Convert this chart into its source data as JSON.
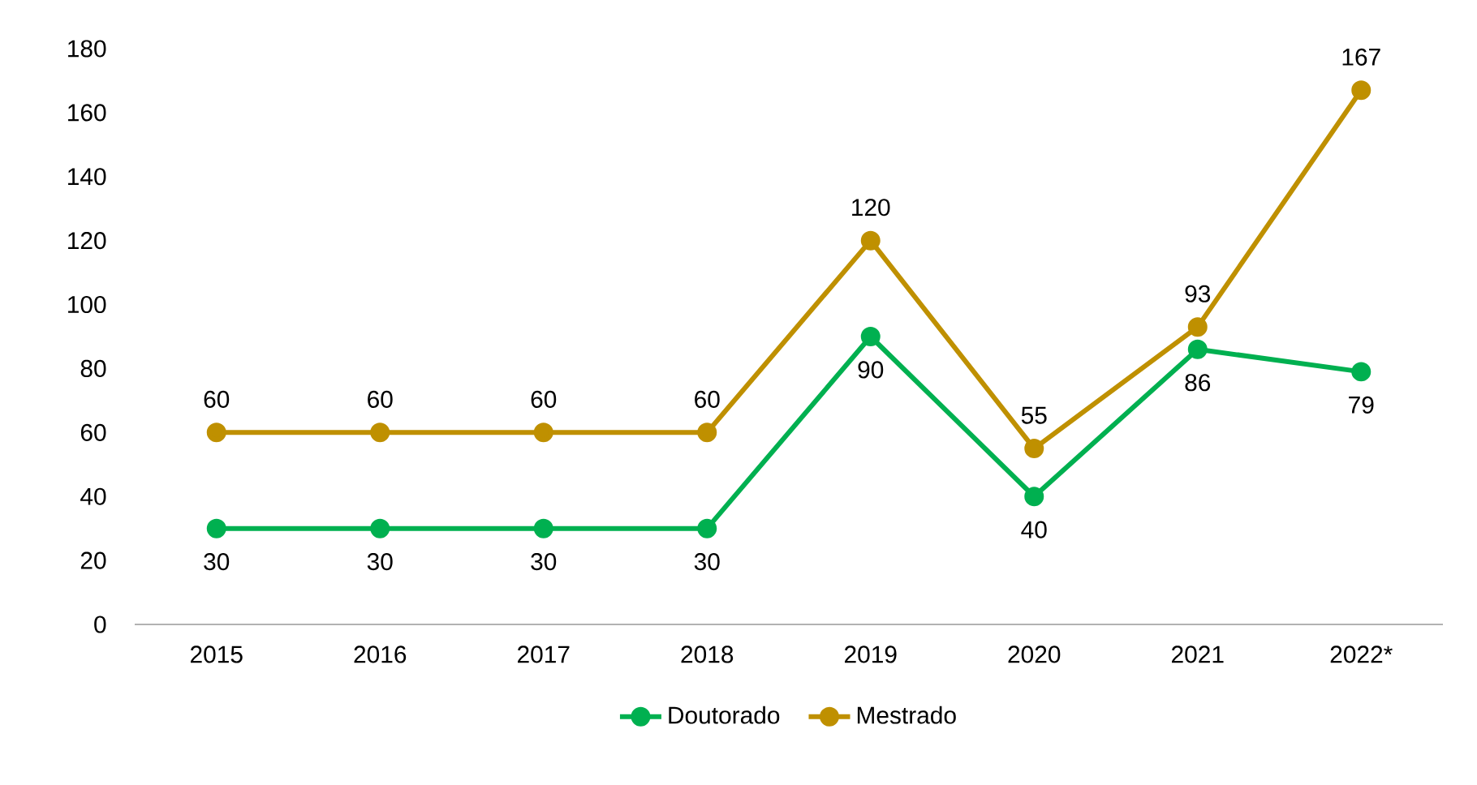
{
  "chart_data": {
    "type": "line",
    "categories": [
      "2015",
      "2016",
      "2017",
      "2018",
      "2019",
      "2020",
      "2021",
      "2022*"
    ],
    "series": [
      {
        "name": "Doutorado",
        "color": "#00b050",
        "values": [
          30,
          30,
          30,
          30,
          90,
          40,
          86,
          79
        ],
        "value_labels": [
          "30",
          "30",
          "30",
          "30",
          "90",
          "40",
          "86",
          "79"
        ]
      },
      {
        "name": "Mestrado",
        "color": "#bf9000",
        "values": [
          60,
          60,
          60,
          60,
          120,
          55,
          93,
          167
        ],
        "value_labels": [
          "60",
          "60",
          "60",
          "60",
          "120",
          "55",
          "93",
          "167"
        ]
      }
    ],
    "ylim": [
      0,
      180
    ],
    "yticks": [
      0,
      20,
      40,
      60,
      80,
      100,
      120,
      140,
      160,
      180
    ],
    "grid": false,
    "legend": "bottom",
    "marker": "circle",
    "line_style": "solid"
  }
}
